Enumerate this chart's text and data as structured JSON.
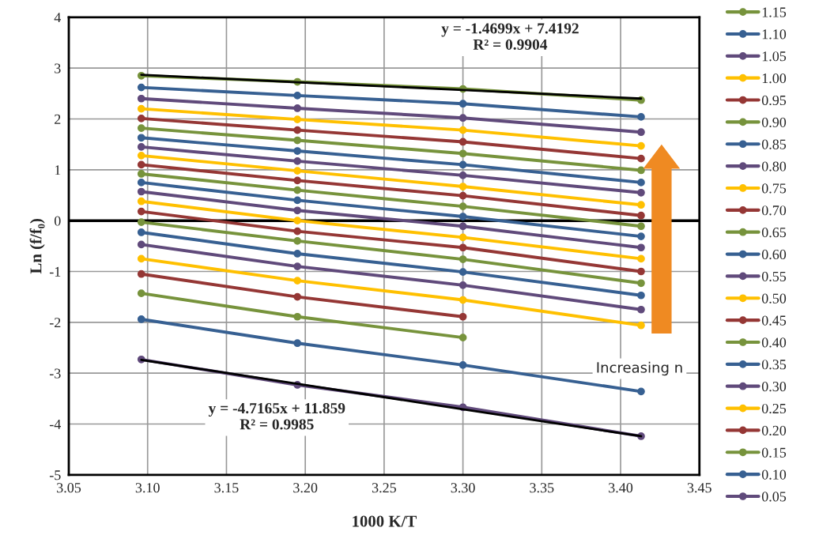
{
  "chart_data": {
    "type": "line",
    "xlabel": "1000 K/T",
    "ylabel": "Ln (f/f₀)",
    "x": [
      3.096,
      3.195,
      3.3,
      3.413
    ],
    "xlim": [
      3.05,
      3.45
    ],
    "xticks": [
      {
        "value": 3.05,
        "label": "3.05"
      },
      {
        "value": 3.1,
        "label": "3.10"
      },
      {
        "value": 3.15,
        "label": "3.15"
      },
      {
        "value": 3.2,
        "label": "3.20"
      },
      {
        "value": 3.25,
        "label": "3.25"
      },
      {
        "value": 3.3,
        "label": "3.30"
      },
      {
        "value": 3.35,
        "label": "3.35"
      },
      {
        "value": 3.4,
        "label": "3.40"
      },
      {
        "value": 3.45,
        "label": "3.45"
      }
    ],
    "ylim": [
      -5,
      4
    ],
    "yticks": [
      -5,
      -4,
      -3,
      -2,
      -1,
      0,
      1,
      2,
      3,
      4
    ],
    "grid": true,
    "legend": "right",
    "marker": "circle",
    "line_style": "solid",
    "ref_lines": [
      {
        "axis": "y",
        "value": 0,
        "color": "#000000"
      }
    ],
    "series": [
      {
        "name": "1.15",
        "color": "#77933c",
        "values": [
          2.85,
          2.73,
          2.59,
          2.37
        ]
      },
      {
        "name": "1.10",
        "color": "#376092",
        "values": [
          2.62,
          2.46,
          2.3,
          2.04
        ]
      },
      {
        "name": "1.05",
        "color": "#604a7b",
        "values": [
          2.4,
          2.21,
          2.02,
          1.74
        ]
      },
      {
        "name": "1.00",
        "color": "#ffc000",
        "values": [
          2.2,
          1.99,
          1.78,
          1.47
        ]
      },
      {
        "name": "0.95",
        "color": "#953735",
        "values": [
          2.01,
          1.78,
          1.55,
          1.22
        ]
      },
      {
        "name": "0.90",
        "color": "#77933c",
        "values": [
          1.82,
          1.58,
          1.32,
          0.99
        ]
      },
      {
        "name": "0.85",
        "color": "#376092",
        "values": [
          1.63,
          1.37,
          1.1,
          0.75
        ]
      },
      {
        "name": "0.80",
        "color": "#604a7b",
        "values": [
          1.45,
          1.17,
          0.89,
          0.55
        ]
      },
      {
        "name": "0.75",
        "color": "#ffc000",
        "values": [
          1.28,
          0.98,
          0.67,
          0.31
        ]
      },
      {
        "name": "0.70",
        "color": "#953735",
        "values": [
          1.1,
          0.79,
          0.49,
          0.1
        ]
      },
      {
        "name": "0.65",
        "color": "#77933c",
        "values": [
          0.92,
          0.6,
          0.28,
          -0.11
        ]
      },
      {
        "name": "0.60",
        "color": "#376092",
        "values": [
          0.75,
          0.4,
          0.08,
          -0.31
        ]
      },
      {
        "name": "0.55",
        "color": "#604a7b",
        "values": [
          0.57,
          0.2,
          -0.11,
          -0.53
        ]
      },
      {
        "name": "0.50",
        "color": "#ffc000",
        "values": [
          0.38,
          0.0,
          -0.33,
          -0.75
        ]
      },
      {
        "name": "0.45",
        "color": "#953735",
        "values": [
          0.18,
          -0.21,
          -0.53,
          -1.0
        ]
      },
      {
        "name": "0.40",
        "color": "#77933c",
        "values": [
          -0.03,
          -0.4,
          -0.76,
          -1.23
        ]
      },
      {
        "name": "0.35",
        "color": "#376092",
        "values": [
          -0.23,
          -0.65,
          -1.01,
          -1.47
        ]
      },
      {
        "name": "0.30",
        "color": "#604a7b",
        "values": [
          -0.47,
          -0.9,
          -1.27,
          -1.75
        ]
      },
      {
        "name": "0.25",
        "color": "#ffc000",
        "values": [
          -0.75,
          -1.18,
          -1.56,
          -2.06
        ]
      },
      {
        "name": "0.20",
        "color": "#953735",
        "values": [
          -1.05,
          -1.5,
          -1.89,
          null
        ]
      },
      {
        "name": "0.15",
        "color": "#77933c",
        "values": [
          -1.43,
          -1.89,
          -2.3,
          null
        ]
      },
      {
        "name": "0.10",
        "color": "#376092",
        "values": [
          -1.94,
          -2.41,
          -2.84,
          -3.36
        ]
      },
      {
        "name": "0.05",
        "color": "#604a7b",
        "values": [
          -2.73,
          -3.23,
          -3.67,
          -4.24
        ]
      },
      {
        "type": "line",
        "color": "#000000",
        "values": [
          2.87,
          2.72,
          2.57,
          2.4
        ],
        "marker": "none"
      },
      {
        "type": "line",
        "color": "#000000",
        "values": [
          -2.74,
          -3.21,
          -3.71,
          -4.24
        ],
        "marker": "none"
      }
    ],
    "annotations": [
      "y = -1.4699x + 7.4192\nR² = 0.9904",
      "y = -4.7165x + 11.859\nR² = 0.9985",
      "Increasing n"
    ]
  }
}
